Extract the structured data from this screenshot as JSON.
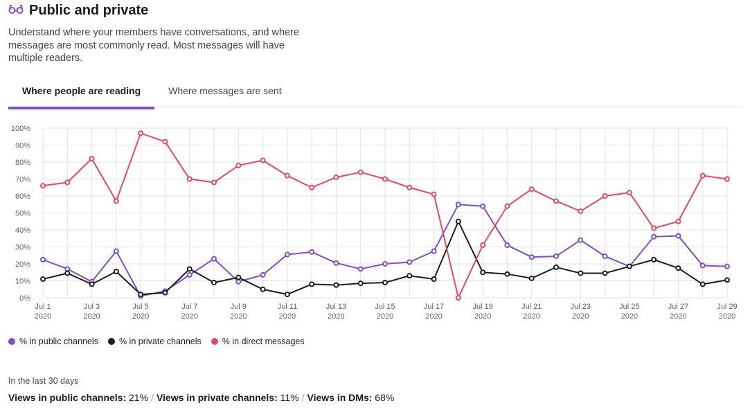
{
  "header": {
    "title": "Public and private",
    "icon": "glasses-icon",
    "description": "Understand where your members have conversations, and where messages are most commonly read. Most messages will have multiple readers."
  },
  "tabs": [
    {
      "label": "Where people are reading",
      "active": true
    },
    {
      "label": "Where messages are sent",
      "active": false
    }
  ],
  "chart_data": {
    "type": "line",
    "x": [
      "Jul 1",
      "Jul 2",
      "Jul 3",
      "Jul 4",
      "Jul 5",
      "Jul 6",
      "Jul 7",
      "Jul 8",
      "Jul 9",
      "Jul 10",
      "Jul 11",
      "Jul 12",
      "Jul 13",
      "Jul 14",
      "Jul 15",
      "Jul 16",
      "Jul 17",
      "Jul 18",
      "Jul 19",
      "Jul 20",
      "Jul 21",
      "Jul 22",
      "Jul 23",
      "Jul 24",
      "Jul 25",
      "Jul 26",
      "Jul 27",
      "Jul 28",
      "Jul 29"
    ],
    "xticks": [
      {
        "label": "Jul 1",
        "year": "2020",
        "index": 0
      },
      {
        "label": "Jul 3",
        "year": "2020",
        "index": 2
      },
      {
        "label": "Jul 5",
        "year": "2020",
        "index": 4
      },
      {
        "label": "Jul 7",
        "year": "2020",
        "index": 6
      },
      {
        "label": "Jul 9",
        "year": "2020",
        "index": 8
      },
      {
        "label": "Jul 11",
        "year": "2020",
        "index": 10
      },
      {
        "label": "Jul 13",
        "year": "2020",
        "index": 12
      },
      {
        "label": "Jul 15",
        "year": "2020",
        "index": 14
      },
      {
        "label": "Jul 17",
        "year": "2020",
        "index": 16
      },
      {
        "label": "Jul 19",
        "year": "2020",
        "index": 18
      },
      {
        "label": "Jul 21",
        "year": "2020",
        "index": 20
      },
      {
        "label": "Jul 23",
        "year": "2020",
        "index": 22
      },
      {
        "label": "Jul 25",
        "year": "2020",
        "index": 24
      },
      {
        "label": "Jul 27",
        "year": "2020",
        "index": 26
      },
      {
        "label": "Jul 29",
        "year": "2020",
        "index": 28
      }
    ],
    "yticks": [
      "0%",
      "10%",
      "20%",
      "30%",
      "40%",
      "50%",
      "60%",
      "70%",
      "80%",
      "90%",
      "100%"
    ],
    "ylim": [
      0,
      100
    ],
    "grid": true,
    "series": [
      {
        "name": "% in public channels",
        "color": "#7c4dcf",
        "values": [
          22.5,
          17,
          9.5,
          27.5,
          1,
          4,
          13.5,
          23,
          9.5,
          13.5,
          25.5,
          27,
          20.5,
          17,
          20,
          21,
          27.5,
          55,
          54,
          31,
          24,
          24.5,
          34,
          24.5,
          18.5,
          36,
          36.5,
          19,
          18.5
        ]
      },
      {
        "name": "% in private channels",
        "color": "#1d1c1d",
        "values": [
          11,
          14.5,
          8,
          15.5,
          2,
          3,
          17,
          9,
          12,
          5,
          2,
          8,
          7.5,
          8.5,
          9,
          13,
          11,
          45,
          15,
          14,
          11.5,
          18,
          14.5,
          14.5,
          18.5,
          22.5,
          17.5,
          8,
          10.5
        ]
      },
      {
        "name": "% in direct messages",
        "color": "#e8485a",
        "values": [
          66,
          68,
          82,
          57,
          97,
          92,
          70,
          68,
          78,
          81,
          72,
          65,
          71,
          74,
          70,
          65,
          61,
          0,
          31,
          54,
          64,
          57,
          51,
          60,
          62,
          41,
          45,
          72,
          70
        ]
      }
    ],
    "legend": "bottom-left"
  },
  "summary": {
    "period": "In the last 30 days",
    "items": [
      {
        "label": "Views in public channels:",
        "value": "21%"
      },
      {
        "label": "Views in private channels:",
        "value": "11%"
      },
      {
        "label": "Views in DMs:",
        "value": "68%"
      }
    ],
    "separator": "/"
  }
}
